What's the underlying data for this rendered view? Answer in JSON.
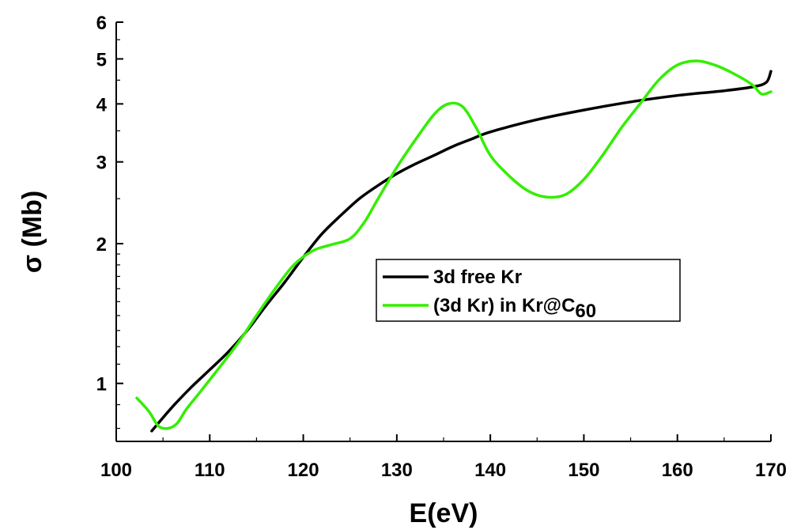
{
  "chart_data": {
    "type": "line",
    "xlabel": "E(eV)",
    "ylabel": "σ (Mb)",
    "xlim": [
      100,
      170
    ],
    "ylim": [
      0.75,
      6
    ],
    "yscale": "log",
    "x_ticks": [
      "100",
      "110",
      "120",
      "130",
      "140",
      "150",
      "160",
      "170"
    ],
    "y_ticks": [
      "1",
      "2",
      "3",
      "4",
      "5",
      "6"
    ],
    "legend_position": "center-right",
    "grid": false,
    "series": [
      {
        "name": "3d free Kr",
        "color": "#000000",
        "x": [
          103.8,
          106,
          108,
          110,
          112,
          114,
          116,
          118,
          120,
          122,
          124,
          126,
          128,
          130,
          132,
          134,
          136,
          138,
          140,
          145,
          150,
          155,
          160,
          165,
          168,
          169.5,
          170
        ],
        "y": [
          0.79,
          0.89,
          0.98,
          1.07,
          1.17,
          1.3,
          1.47,
          1.65,
          1.87,
          2.1,
          2.3,
          2.5,
          2.67,
          2.83,
          2.97,
          3.1,
          3.24,
          3.36,
          3.48,
          3.7,
          3.88,
          4.04,
          4.17,
          4.27,
          4.35,
          4.45,
          4.7
        ]
      },
      {
        "name": "(3d Kr) in Kr@C",
        "name_subscript": "60",
        "color": "#33ee00",
        "x": [
          102.2,
          103.5,
          104.5,
          105.5,
          106.5,
          107.5,
          109,
          111,
          113,
          115,
          117,
          119,
          121,
          123,
          125,
          126.5,
          128,
          130,
          132,
          134,
          135.5,
          137,
          138.5,
          140,
          142,
          144,
          146,
          148,
          150,
          152,
          154,
          156,
          158,
          160,
          162,
          164,
          166,
          168,
          169,
          170
        ],
        "y": [
          0.93,
          0.87,
          0.81,
          0.8,
          0.82,
          0.88,
          0.96,
          1.08,
          1.22,
          1.4,
          1.6,
          1.8,
          1.93,
          1.99,
          2.05,
          2.22,
          2.5,
          2.92,
          3.35,
          3.8,
          4.0,
          3.95,
          3.55,
          3.1,
          2.8,
          2.6,
          2.52,
          2.55,
          2.75,
          3.1,
          3.55,
          4.0,
          4.5,
          4.85,
          4.95,
          4.85,
          4.65,
          4.4,
          4.2,
          4.25
        ]
      }
    ]
  }
}
